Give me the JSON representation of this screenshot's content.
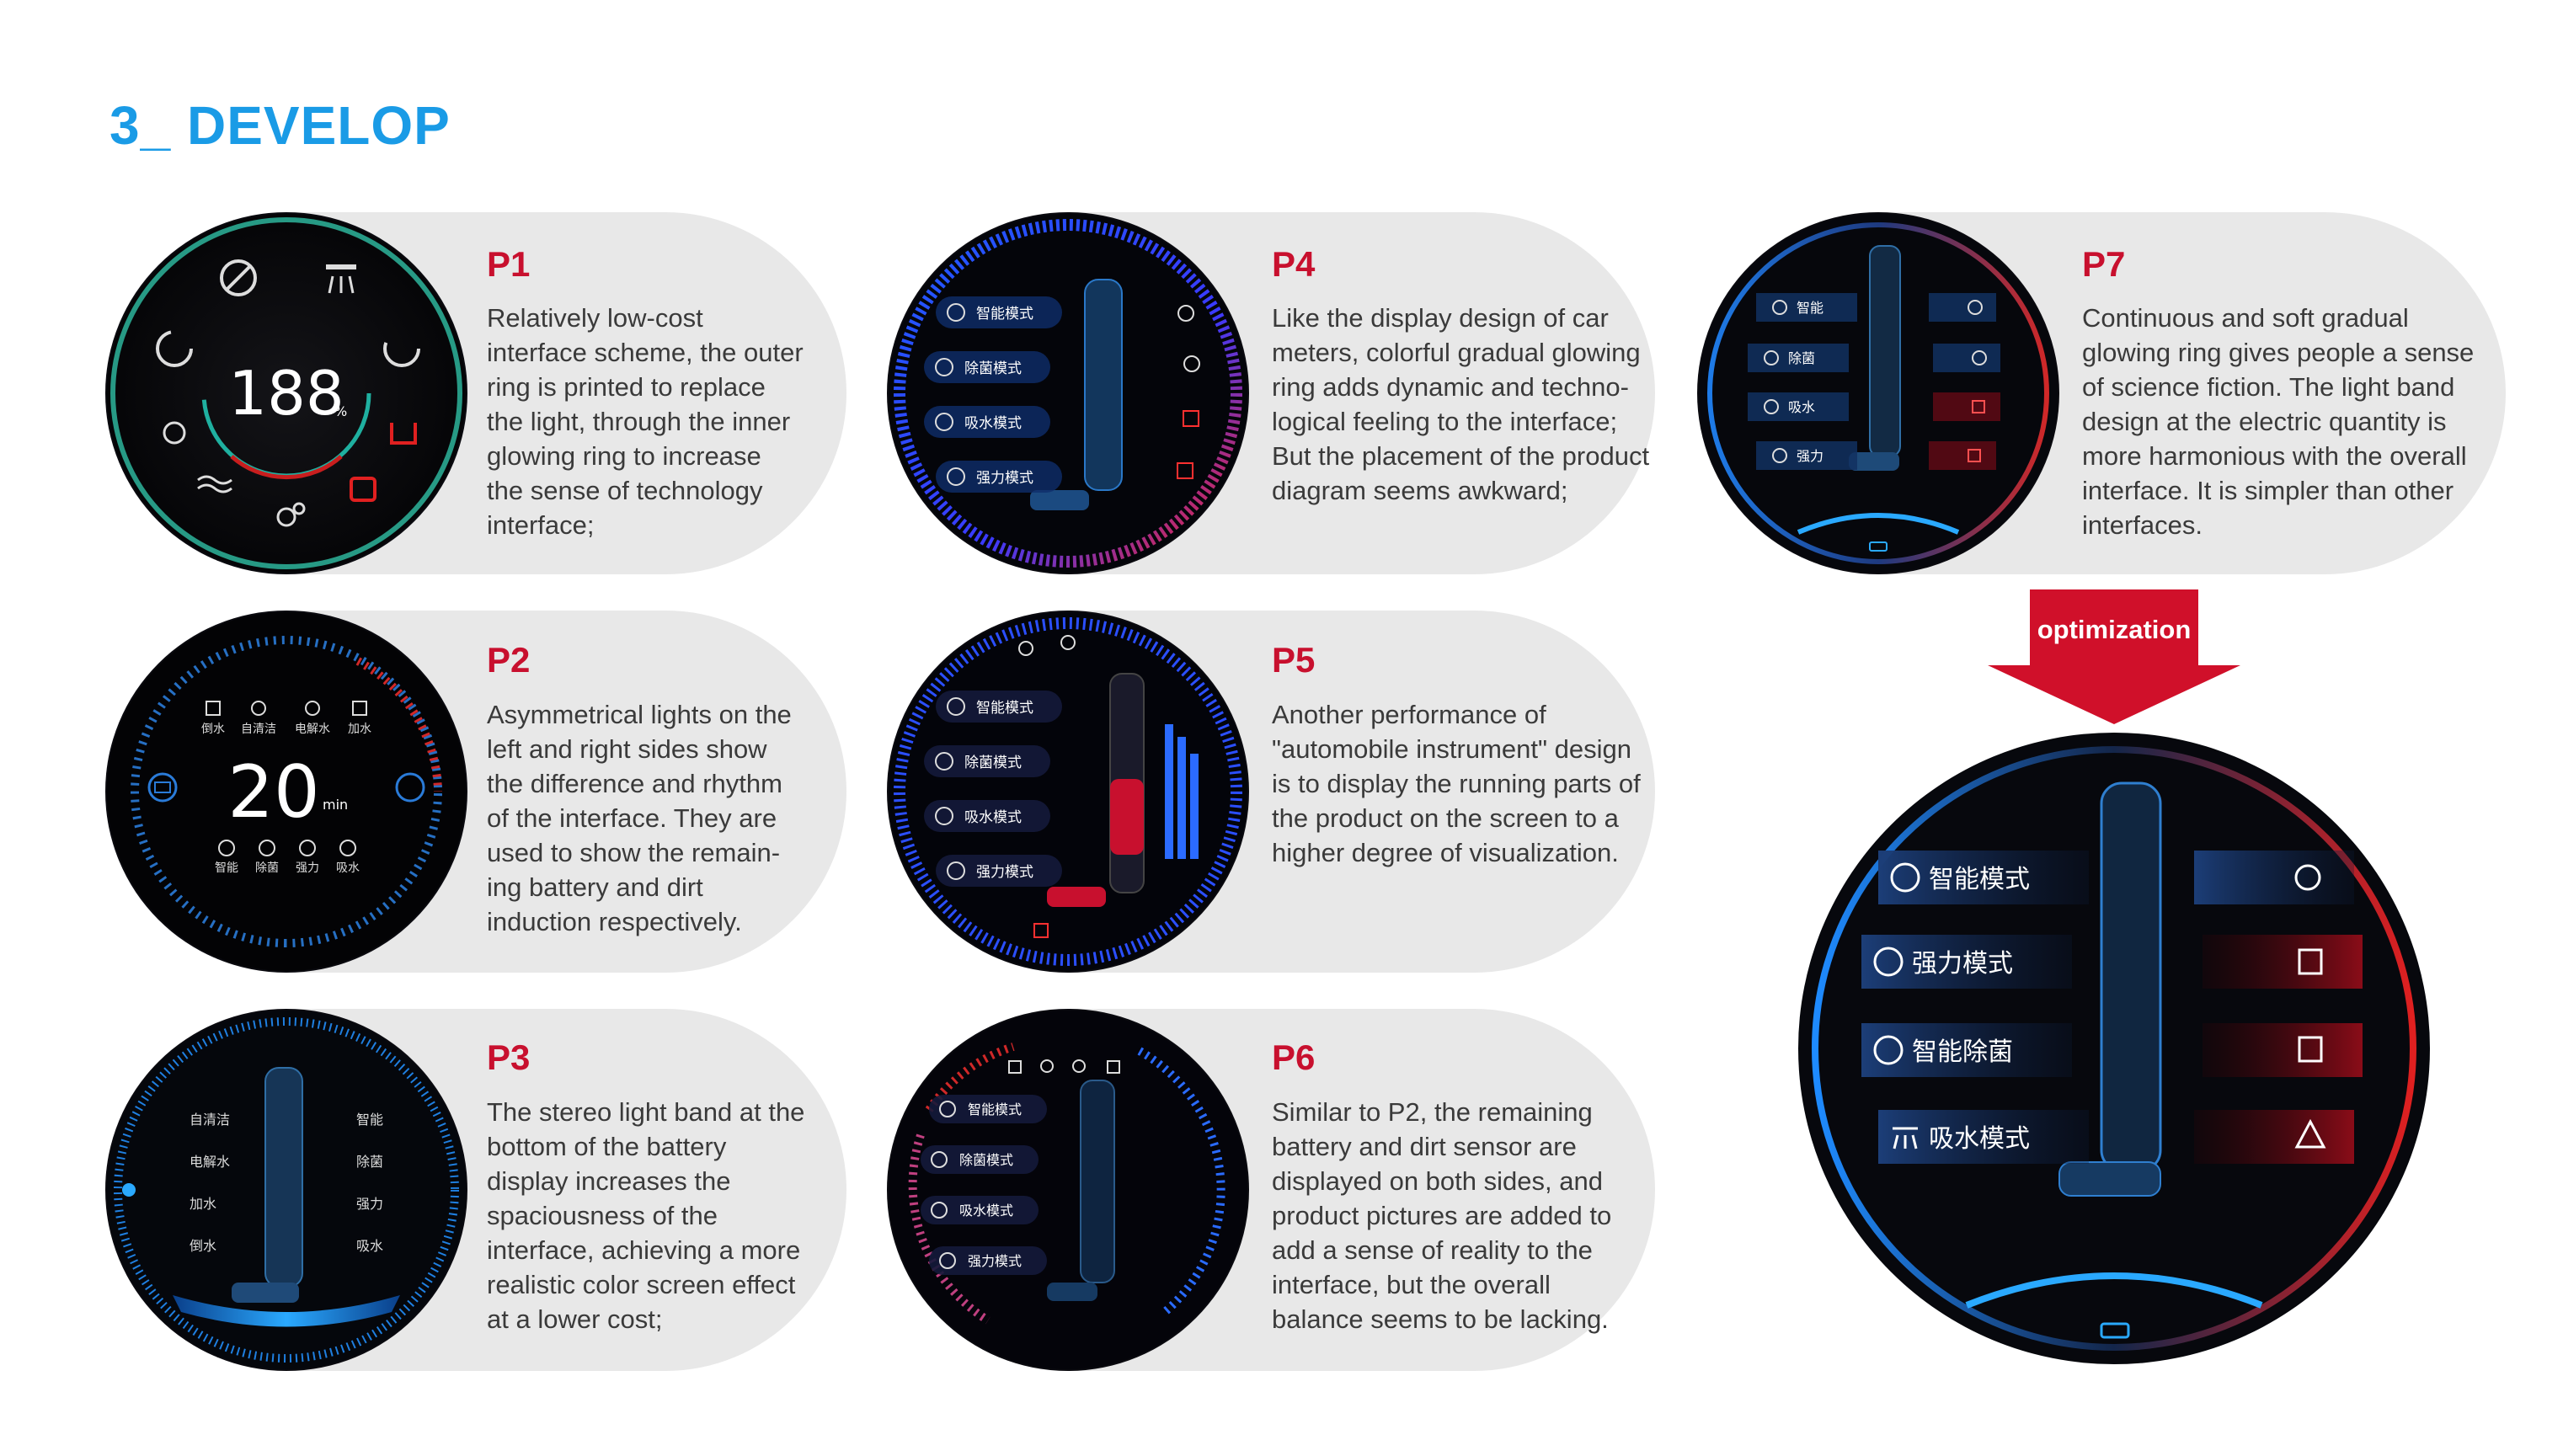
{
  "page": {
    "title": "3_ DEVELOP",
    "optimization_label": "optimization"
  },
  "colors": {
    "accent_blue": "#1a9be6",
    "accent_red": "#c8102e",
    "card_bg": "#e8e8e8",
    "text": "#3a3a3a"
  },
  "panels": [
    {
      "id": "P1",
      "title": "P1",
      "text": [
        "Relatively low-cost",
        "interface scheme, the outer",
        "ring is printed to replace",
        "the light, through the inner",
        "glowing ring to increase",
        "the sense of technology",
        "interface;"
      ]
    },
    {
      "id": "P2",
      "title": "P2",
      "text": [
        "Asymmetrical lights on the",
        "left and right sides show",
        "the difference and rhythm",
        "of the interface. They are",
        "used to show the remain-",
        "ing battery and dirt",
        "induction respectively."
      ]
    },
    {
      "id": "P3",
      "title": "P3",
      "text": [
        "The stereo light band at the",
        "bottom of the battery",
        "display increases the",
        "spaciousness of the",
        "interface, achieving a more",
        "realistic color screen effect",
        "at a lower cost;"
      ]
    },
    {
      "id": "P4",
      "title": "P4",
      "text": [
        "Like the display design of car",
        "meters, colorful gradual glowing",
        "ring adds dynamic and techno-",
        "logical feeling to the interface;",
        "But the placement of the product",
        "diagram seems awkward;"
      ]
    },
    {
      "id": "P5",
      "title": "P5",
      "text": [
        "Another performance of",
        "\"automobile instrument\" design",
        "is to display the running parts of",
        "the product on the screen to a",
        "higher degree of visualization."
      ]
    },
    {
      "id": "P6",
      "title": "P6",
      "text": [
        "Similar to P2, the remaining",
        "battery and dirt sensor are",
        "displayed on both sides, and",
        "product pictures are added to",
        "add a sense of reality to the",
        "interface, but the overall",
        "balance seems to be lacking."
      ]
    },
    {
      "id": "P7",
      "title": "P7",
      "text": [
        "Continuous and soft gradual",
        "glowing ring gives people a sense",
        "of science fiction. The light band",
        "design at the electric quantity is",
        "more harmonious with the overall",
        "interface. It is simpler than other",
        "interfaces."
      ]
    }
  ],
  "screens": {
    "p1": {
      "readout": "188",
      "unit": "%"
    },
    "p2": {
      "readout": "20",
      "unit": "min",
      "top_labels": [
        "倒水",
        "自清洁",
        "电解水",
        "加水"
      ],
      "bottom_labels": [
        "智能",
        "除菌",
        "强力",
        "吸水"
      ]
    },
    "p3": {
      "left_labels": [
        "自清洁",
        "电解水",
        "加水",
        "倒水"
      ],
      "right_labels": [
        "智能",
        "除菌",
        "强力",
        "吸水"
      ]
    },
    "p4": {
      "modes": [
        "智能模式",
        "除菌模式",
        "吸水模式",
        "强力模式"
      ]
    },
    "p5": {
      "modes": [
        "智能模式",
        "除菌模式",
        "吸水模式",
        "强力模式"
      ]
    },
    "p6": {
      "modes": [
        "智能模式",
        "除菌模式",
        "吸水模式",
        "强力模式"
      ]
    },
    "p7": {
      "modes": [
        "智能",
        "除菌",
        "吸水",
        "强力"
      ]
    },
    "final": {
      "modes": [
        "智能模式",
        "强力模式",
        "智能除菌",
        "吸水模式"
      ]
    }
  }
}
